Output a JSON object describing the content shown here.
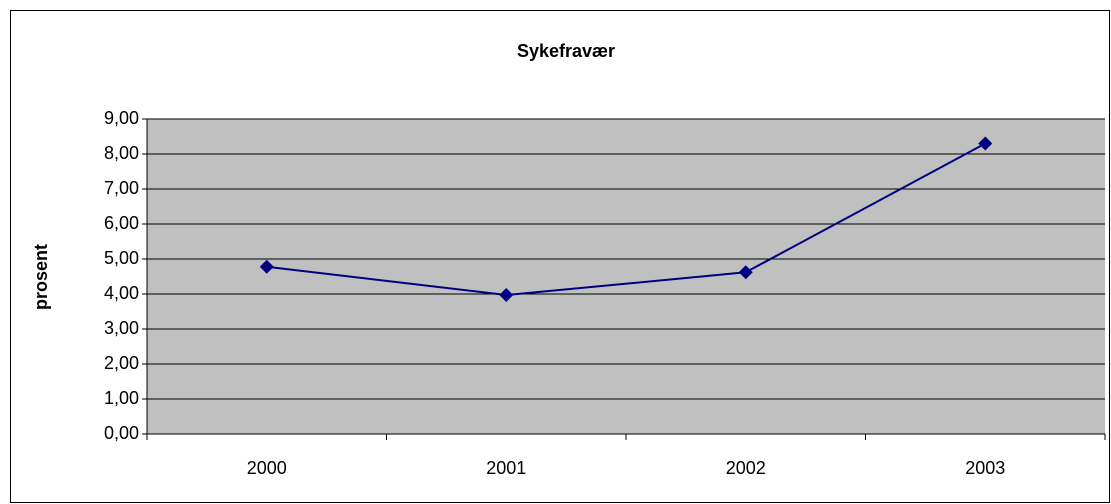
{
  "chart_data": {
    "type": "line",
    "title": "Sykefravær",
    "y_label": "prosent",
    "categories": [
      "2000",
      "2001",
      "2002",
      "2003"
    ],
    "series": [
      {
        "name": "Sykefravær",
        "color": "#000080",
        "values": [
          4.78,
          3.97,
          4.62,
          8.3
        ]
      }
    ],
    "ylim": [
      0,
      9
    ],
    "yticks": [
      {
        "value": 0,
        "label": "0,00"
      },
      {
        "value": 1,
        "label": "1,00"
      },
      {
        "value": 2,
        "label": "2,00"
      },
      {
        "value": 3,
        "label": "3,00"
      },
      {
        "value": 4,
        "label": "4,00"
      },
      {
        "value": 5,
        "label": "5,00"
      },
      {
        "value": 6,
        "label": "6,00"
      },
      {
        "value": 7,
        "label": "7,00"
      },
      {
        "value": 8,
        "label": "8,00"
      },
      {
        "value": 9,
        "label": "9,00"
      }
    ],
    "grid": true,
    "plot_background": "#c0c0c0"
  }
}
